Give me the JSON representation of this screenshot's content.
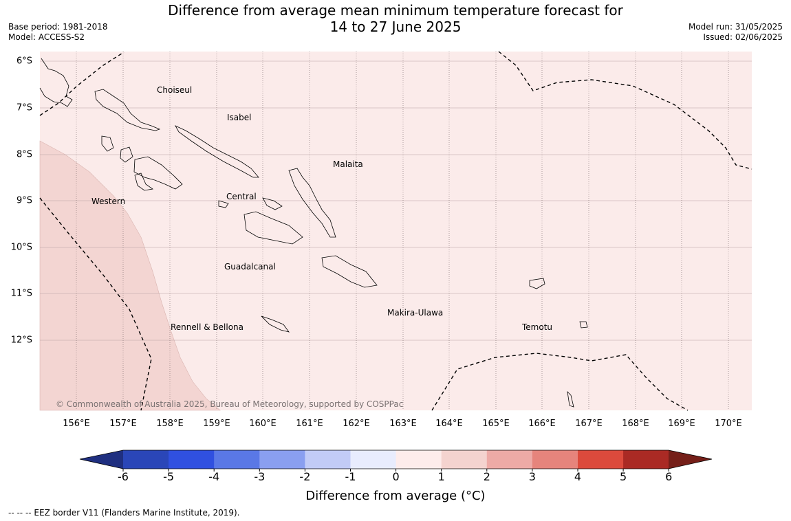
{
  "header": {
    "title_line1": "Difference from average mean minimum temperature forecast for",
    "title_line2": "14 to 27 June 2025",
    "base_period": "Base period: 1981-2018",
    "model": "Model: ACCESS-S2",
    "model_run": "Model run: 31/05/2025",
    "issued": "Issued: 02/06/2025"
  },
  "map": {
    "background_color": "#fbebea",
    "warm_region_color": "#f3d5d2",
    "lat_labels": [
      "6°S",
      "7°S",
      "8°S",
      "9°S",
      "10°S",
      "11°S",
      "12°S"
    ],
    "lon_labels": [
      "156°E",
      "157°E",
      "158°E",
      "159°E",
      "160°E",
      "161°E",
      "162°E",
      "163°E",
      "164°E",
      "165°E",
      "166°E",
      "167°E",
      "168°E",
      "169°E",
      "170°E"
    ],
    "places": {
      "choiseul": "Choiseul",
      "isabel": "Isabel",
      "malaita": "Malaita",
      "western": "Western",
      "central": "Central",
      "guadalcanal": "Guadalcanal",
      "rennell": "Rennell & Bellona",
      "makira": "Makira-Ulawa",
      "temotu": "Temotu"
    },
    "copyright": "© Commonwealth of Australia 2025, Bureau of Meteorology, supported by COSPPac"
  },
  "colorbar": {
    "colors": [
      "#1f2f80",
      "#2a46b8",
      "#3050e0",
      "#5a78e6",
      "#8a9ff0",
      "#c2cbf6",
      "#e8ecfd",
      "#fdeceb",
      "#f4d3cf",
      "#edaaa6",
      "#e6847c",
      "#dc4a3c",
      "#aa2a24",
      "#751f19"
    ],
    "ticks": [
      "-6",
      "-5",
      "-4",
      "-3",
      "-2",
      "-1",
      "0",
      "1",
      "2",
      "3",
      "4",
      "5",
      "6"
    ],
    "label": "Difference from average (°C)"
  },
  "footer": "--  --  -- EEZ border V11 (Flanders Marine Institute, 2019)."
}
